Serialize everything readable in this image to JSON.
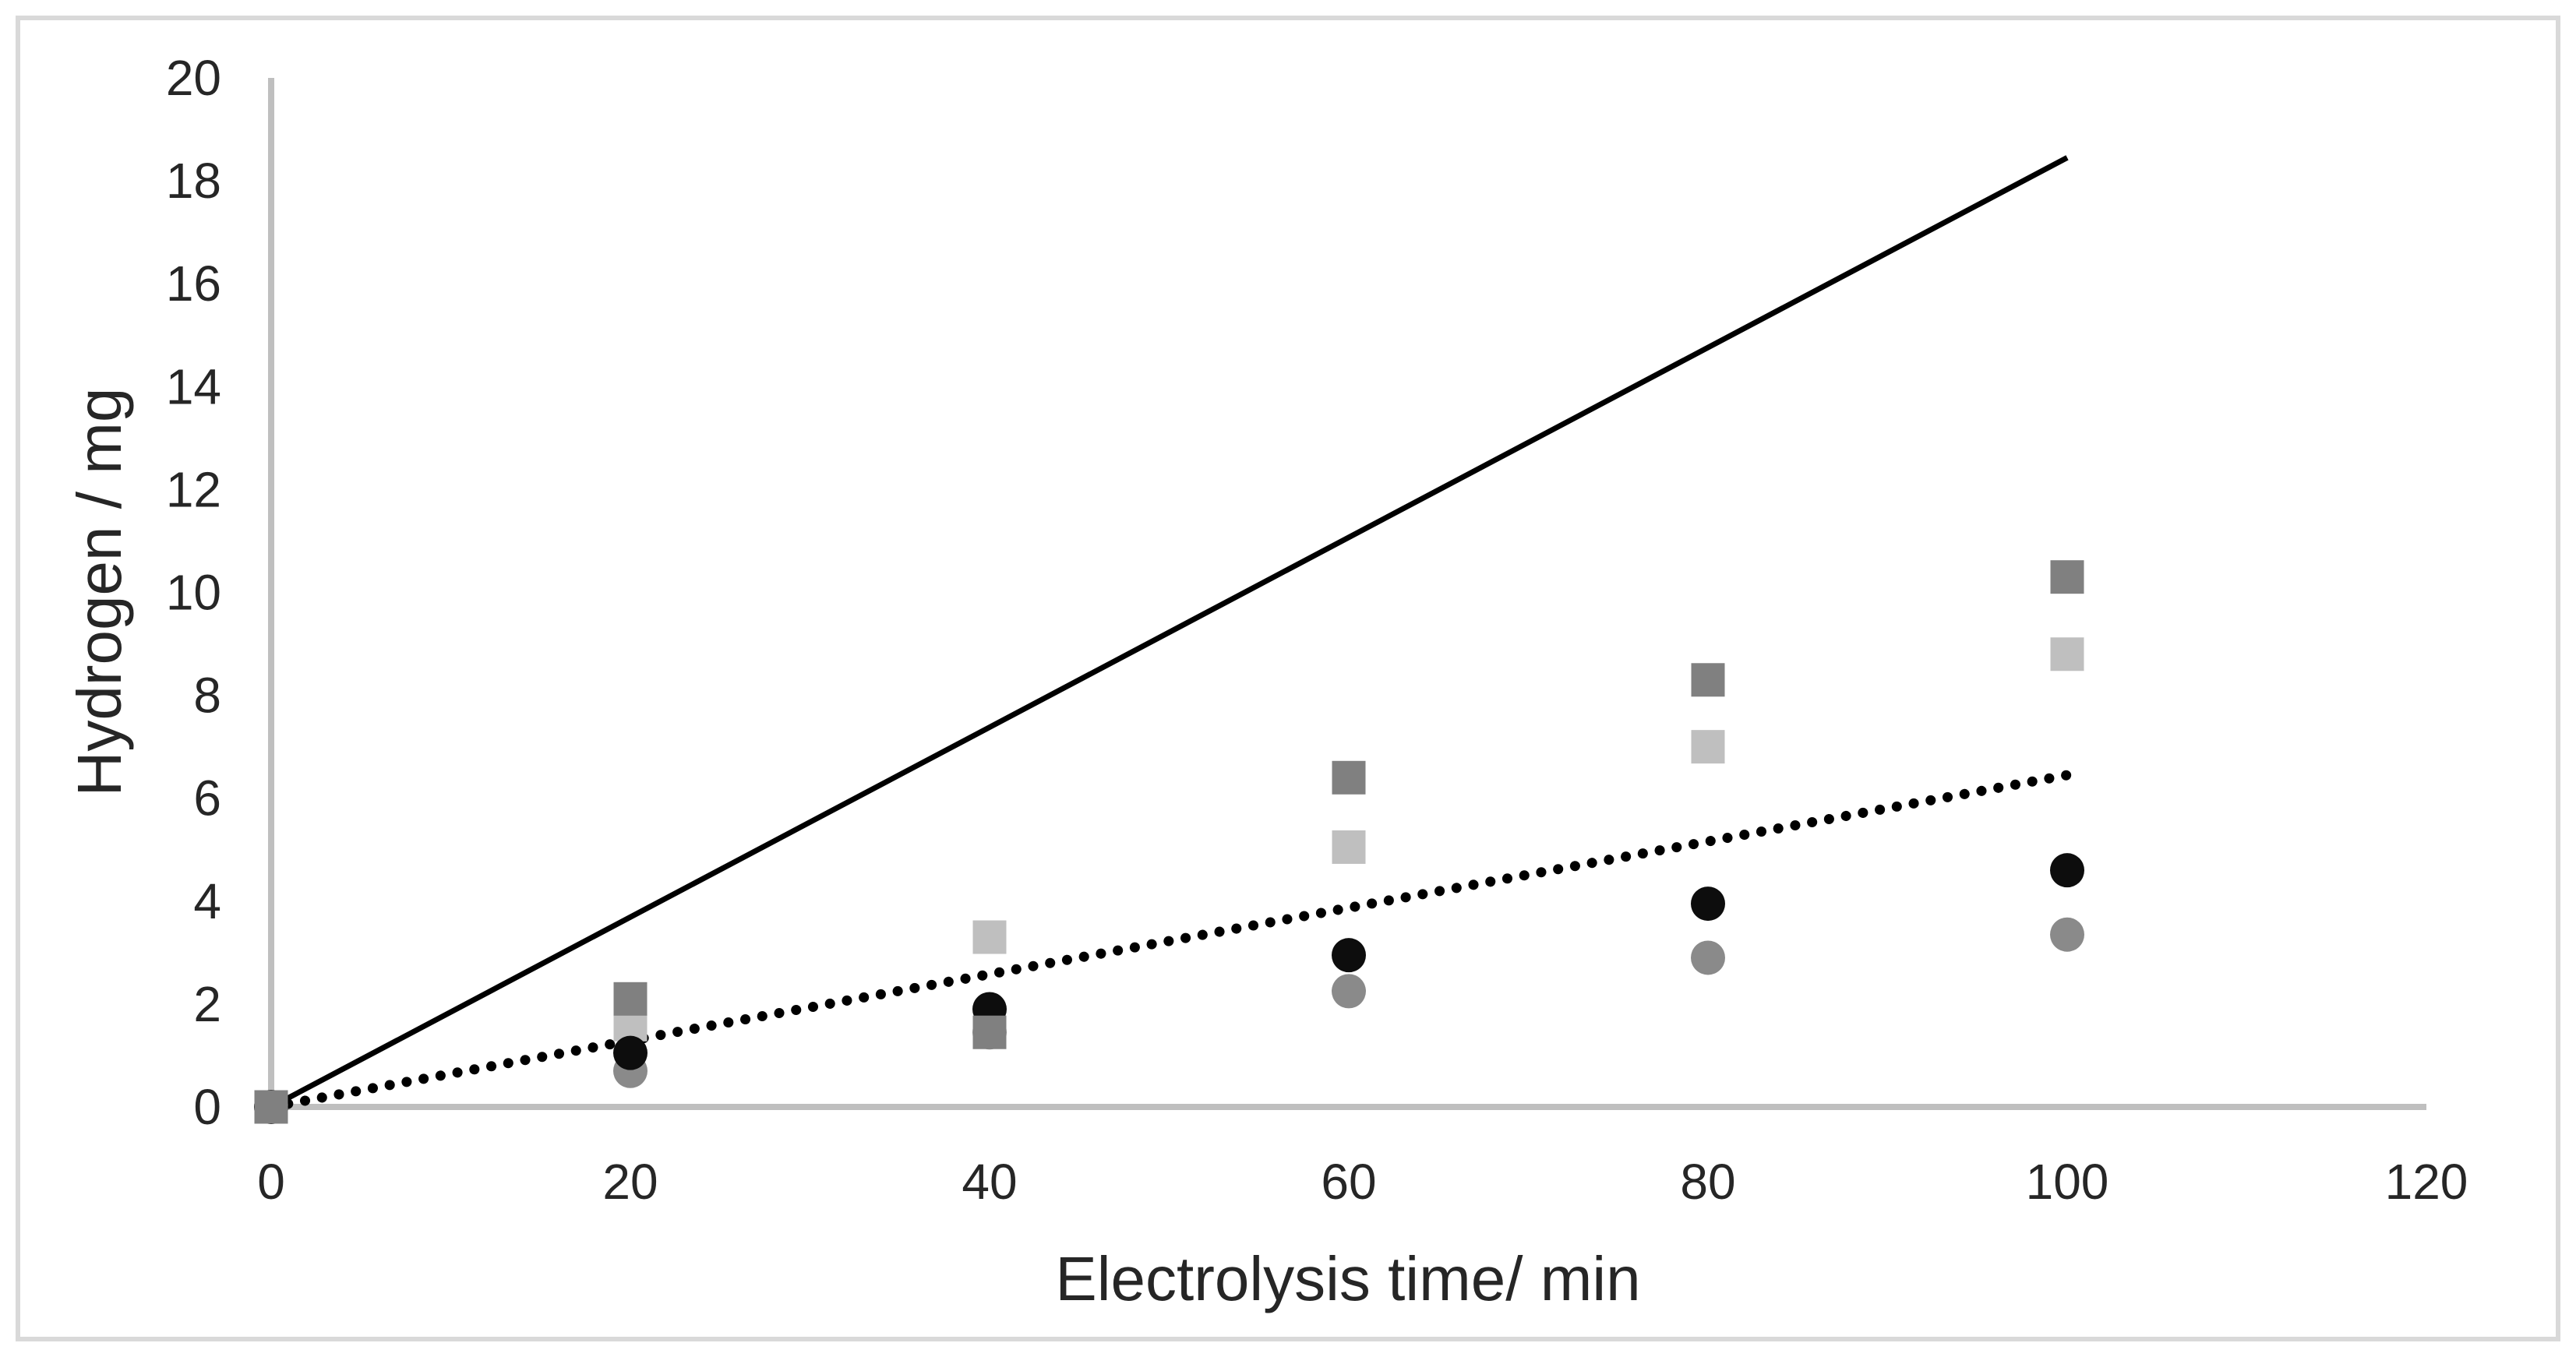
{
  "figure": {
    "background_color": "#FFFFFF",
    "border_color": "#D9D9D9"
  },
  "chart_data": {
    "type": "scatter",
    "title": "",
    "xlabel": "Electrolysis time/ min",
    "ylabel": "Hydrogen / mg",
    "xlim": [
      0,
      120
    ],
    "ylim": [
      0,
      20
    ],
    "x_ticks": [
      0,
      20,
      40,
      60,
      80,
      100,
      120
    ],
    "y_ticks": [
      0,
      2,
      4,
      6,
      8,
      10,
      12,
      14,
      16,
      18,
      20
    ],
    "grid": false,
    "legend_position": "none",
    "axis_color": "#BFBFBF",
    "text_color": "#262626",
    "series": [
      {
        "name": "theoretical-solid-line",
        "type": "line",
        "style": "solid",
        "color": "#000000",
        "x": [
          0,
          100
        ],
        "y": [
          0,
          18.45
        ]
      },
      {
        "name": "dotted-trendline",
        "type": "line",
        "style": "dotted",
        "color": "#000000",
        "x": [
          0,
          100
        ],
        "y": [
          0,
          6.45
        ]
      },
      {
        "name": "gray-circle-series",
        "type": "scatter",
        "marker": "circle",
        "color": "#8A8A8A",
        "x": [
          0,
          20,
          40,
          60,
          80,
          100
        ],
        "y": [
          0,
          0.7,
          1.45,
          2.25,
          2.9,
          3.35
        ]
      },
      {
        "name": "light-gray-square-series",
        "type": "scatter",
        "marker": "square",
        "color": "#BFBFBF",
        "x": [
          0,
          20,
          40,
          60,
          80,
          100
        ],
        "y": [
          0,
          1.6,
          3.3,
          5.05,
          7.0,
          8.8
        ]
      },
      {
        "name": "black-circle-series",
        "type": "scatter",
        "marker": "circle",
        "color": "#0D0D0D",
        "x": [
          0,
          20,
          40,
          60,
          80,
          100
        ],
        "y": [
          0,
          1.05,
          1.9,
          2.95,
          3.95,
          4.6
        ]
      },
      {
        "name": "dark-gray-square-series",
        "type": "scatter",
        "marker": "square",
        "color": "#808080",
        "x": [
          0,
          20,
          40,
          60,
          80,
          100
        ],
        "y": [
          0,
          2.1,
          1.45,
          6.4,
          8.3,
          10.3
        ]
      }
    ]
  }
}
